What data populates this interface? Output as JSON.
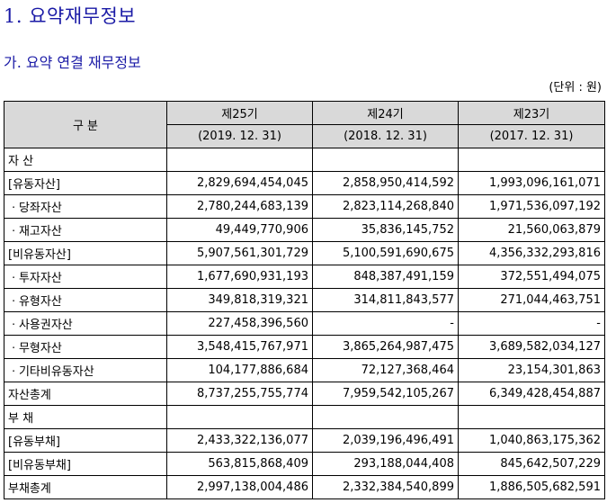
{
  "headings": {
    "title": "1. 요약재무정보",
    "subtitle": "가. 요약 연결 재무정보",
    "unit": "(단위 : 원)"
  },
  "table": {
    "header_label": "구 분",
    "periods": [
      {
        "label": "제25기",
        "date": "(2019. 12. 31)"
      },
      {
        "label": "제24기",
        "date": "(2018. 12. 31)"
      },
      {
        "label": "제23기",
        "date": "(2017. 12. 31)"
      }
    ],
    "rows": [
      {
        "label": "자 산",
        "values": [
          "",
          "",
          ""
        ]
      },
      {
        "label": "[유동자산]",
        "values": [
          "2,829,694,454,045",
          "2,858,950,414,592",
          "1,993,096,161,071"
        ]
      },
      {
        "label": "ㆍ당좌자산",
        "values": [
          "2,780,244,683,139",
          "2,823,114,268,840",
          "1,971,536,097,192"
        ]
      },
      {
        "label": "ㆍ재고자산",
        "values": [
          "49,449,770,906",
          "35,836,145,752",
          "21,560,063,879"
        ]
      },
      {
        "label": "[비유동자산]",
        "values": [
          "5,907,561,301,729",
          "5,100,591,690,675",
          "4,356,332,293,816"
        ]
      },
      {
        "label": "ㆍ투자자산",
        "values": [
          "1,677,690,931,193",
          "848,387,491,159",
          "372,551,494,075"
        ]
      },
      {
        "label": "ㆍ유형자산",
        "values": [
          "349,818,319,321",
          "314,811,843,577",
          "271,044,463,751"
        ]
      },
      {
        "label": "ㆍ사용권자산",
        "values": [
          "227,458,396,560",
          "-",
          "-"
        ]
      },
      {
        "label": "ㆍ무형자산",
        "values": [
          "3,548,415,767,971",
          "3,865,264,987,475",
          "3,689,582,034,127"
        ]
      },
      {
        "label": "ㆍ기타비유동자산",
        "values": [
          "104,177,886,684",
          "72,127,368,464",
          "23,154,301,863"
        ]
      },
      {
        "label": "자산총계",
        "values": [
          "8,737,255,755,774",
          "7,959,542,105,267",
          "6,349,428,454,887"
        ]
      },
      {
        "label": "부 채",
        "values": [
          "",
          "",
          ""
        ]
      },
      {
        "label": "[유동부채]",
        "values": [
          "2,433,322,136,077",
          "2,039,196,496,491",
          "1,040,863,175,362"
        ]
      },
      {
        "label": "[비유동부채]",
        "values": [
          "563,815,868,409",
          "293,188,044,408",
          "845,642,507,229"
        ]
      },
      {
        "label": "부채총계",
        "values": [
          "2,997,138,004,486",
          "2,332,384,540,899",
          "1,886,505,682,591"
        ]
      }
    ]
  }
}
